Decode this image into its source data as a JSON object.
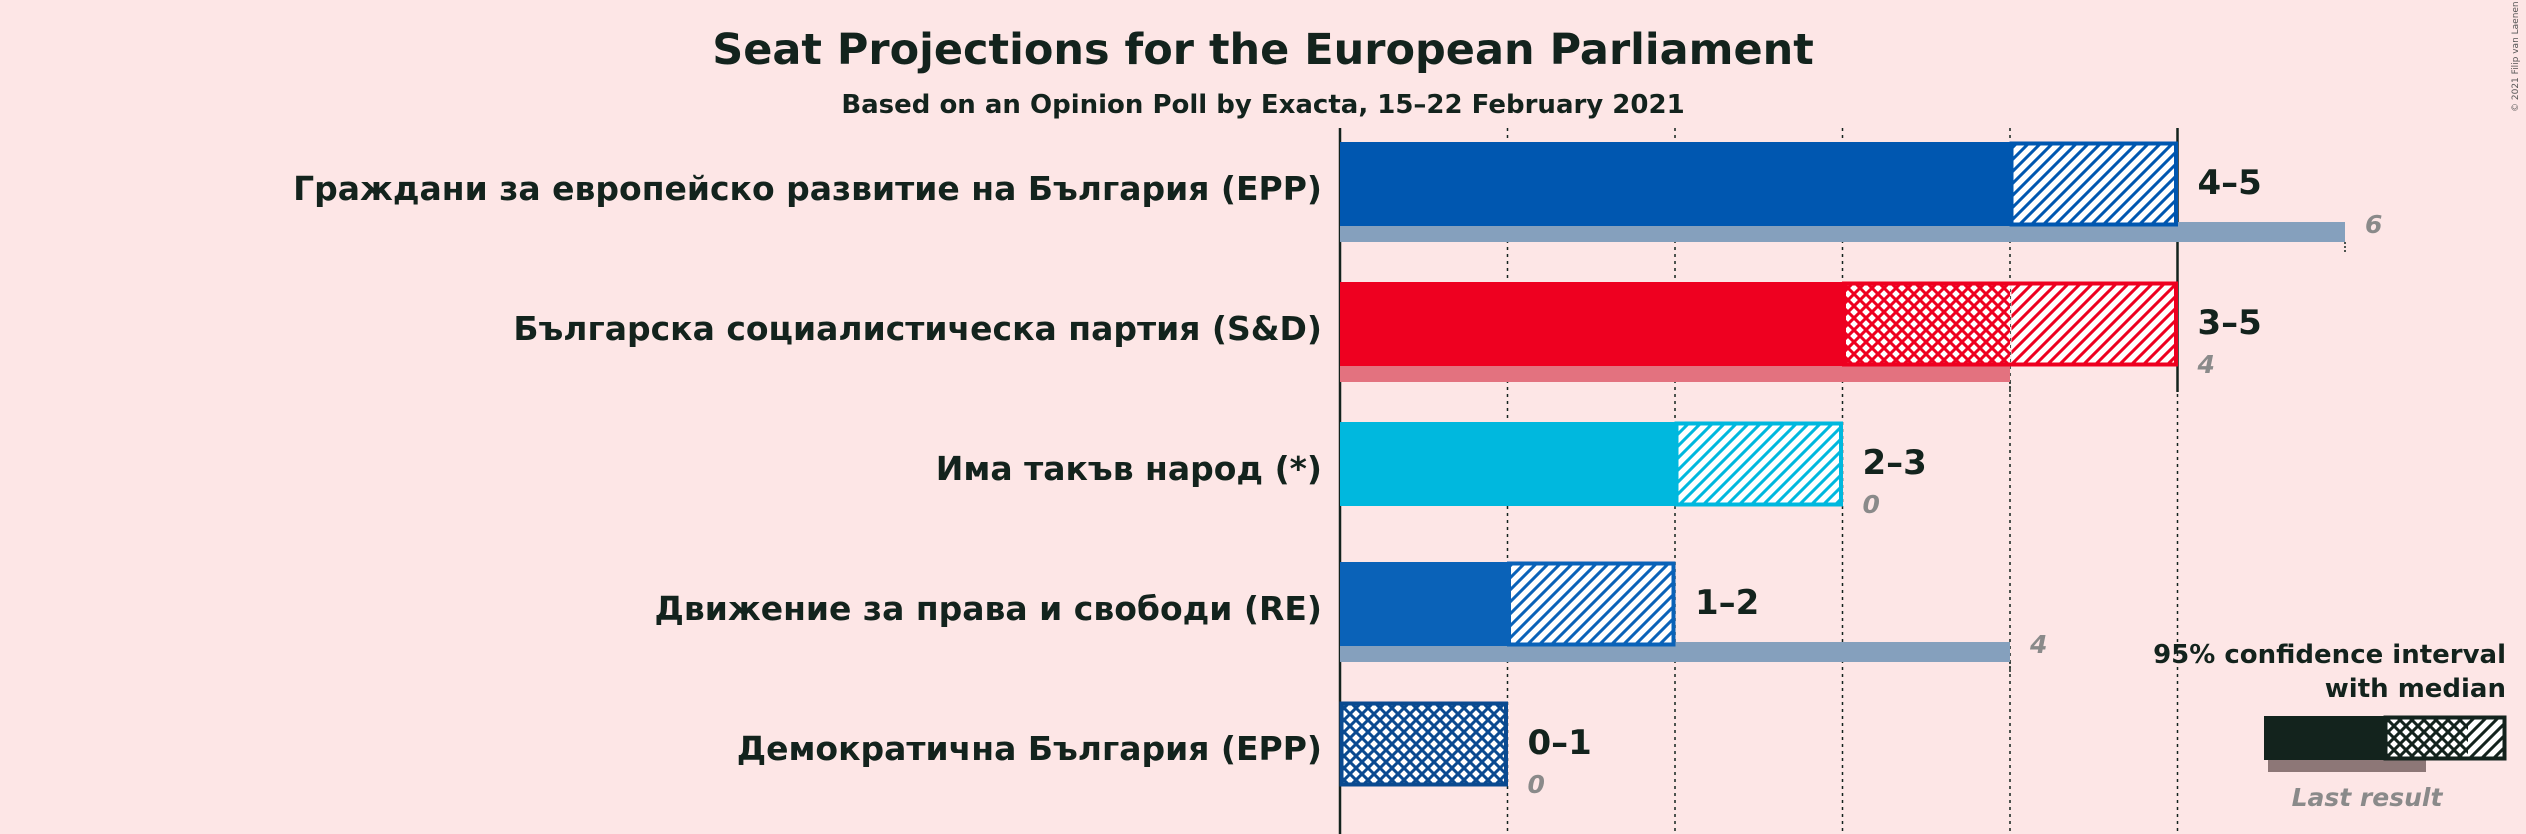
{
  "title": "Seat Projections for the European Parliament",
  "subtitle": "Based on an Opinion Poll by Exacta, 15–22 February 2021",
  "copyright": "© 2021 Filip van Laenen",
  "legend": {
    "line1": "95% confidence interval",
    "line2": "with median",
    "last_result": "Last result"
  },
  "chart_data": {
    "type": "bar",
    "xlim": [
      0,
      6
    ],
    "grid": true,
    "categories": [
      "Граждани за европейско развитие на България (EPP)",
      "Българска социалистическа партия (S&D)",
      "Има такъв народ (*)",
      "Движение за права и свободи (RE)",
      "Демократична България (EPP)"
    ],
    "series": [
      {
        "name": "Граждани за европейско развитие на България (EPP)",
        "color": "#0057b0",
        "last_color": "#85a0bd",
        "ci_low": 4,
        "median": 4,
        "ci_high": 5,
        "range_label": "4–5",
        "last_result": 6,
        "last_label": "6"
      },
      {
        "name": "Българска социалистическа партия (S&D)",
        "color": "#ee0020",
        "last_color": "#e3727f",
        "ci_low": 3,
        "median": 4,
        "ci_high": 5,
        "range_label": "3–5",
        "last_result": 4,
        "last_label": "4"
      },
      {
        "name": "Има такъв народ (*)",
        "color": "#00b8de",
        "last_color": "#85a0bd",
        "ci_low": 2,
        "median": 2,
        "ci_high": 3,
        "range_label": "2–3",
        "last_result": 0,
        "last_label": "0"
      },
      {
        "name": "Движение за права и свободи (RE)",
        "color": "#0a62b8",
        "last_color": "#85a0bd",
        "ci_low": 1,
        "median": 1,
        "ci_high": 2,
        "range_label": "1–2",
        "last_result": 4,
        "last_label": "4"
      },
      {
        "name": "Демократична България (EPP)",
        "color": "#0a4a90",
        "last_color": "#85a0bd",
        "ci_low": 0,
        "median": 1,
        "ci_high": 1,
        "range_label": "0–1",
        "last_result": 0,
        "last_label": "0"
      }
    ]
  }
}
